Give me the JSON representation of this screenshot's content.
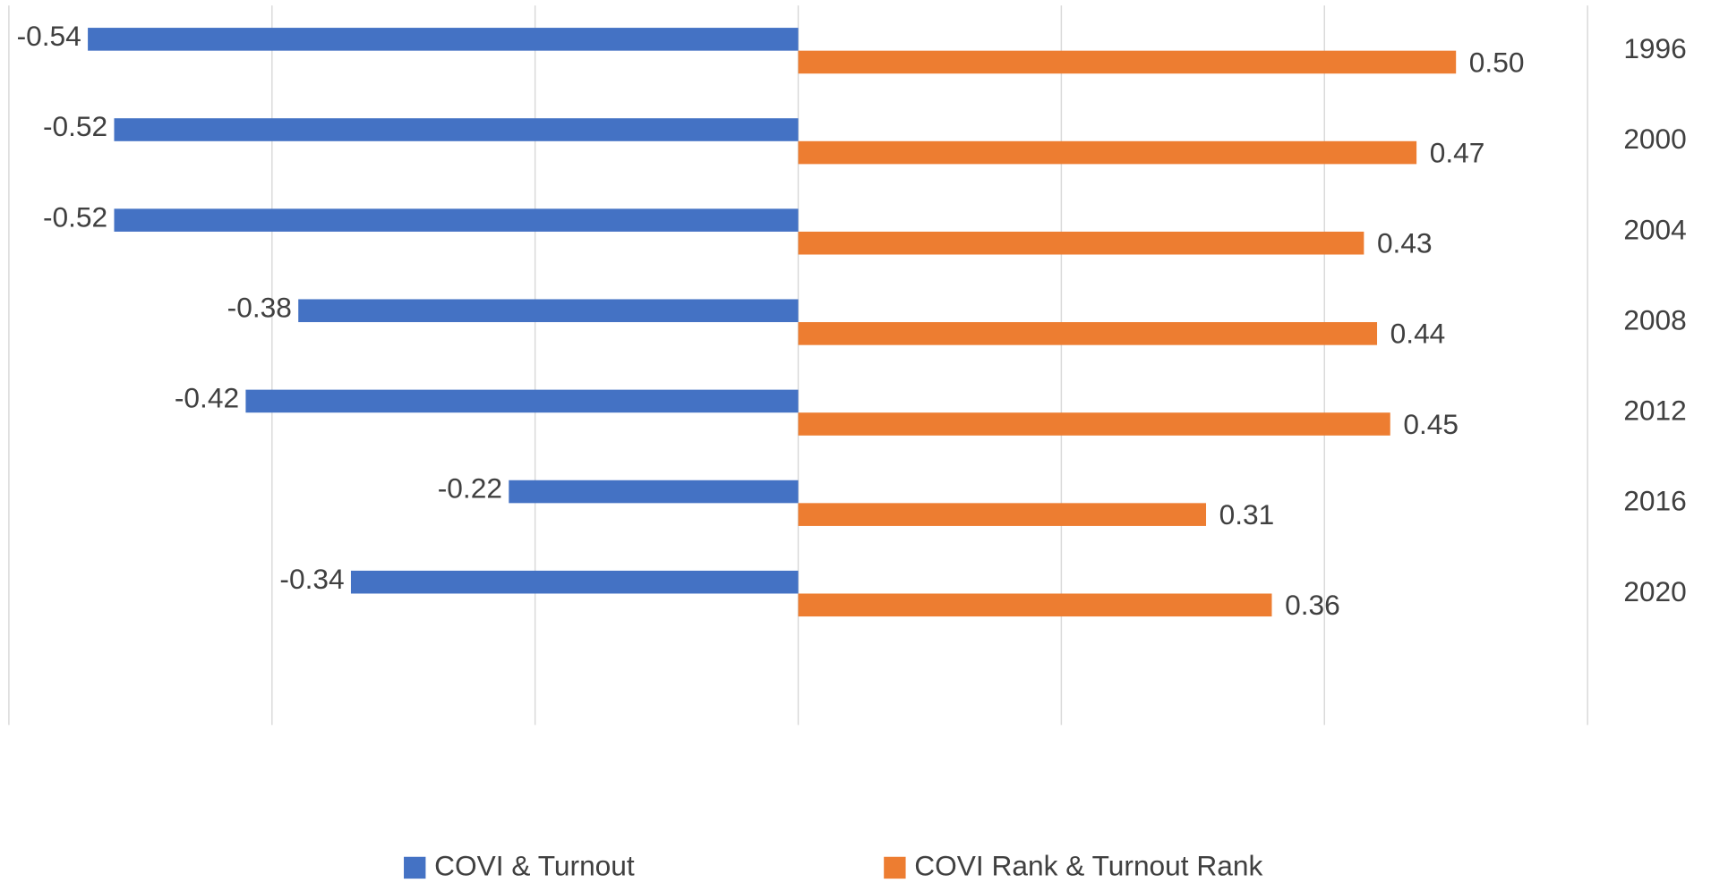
{
  "chart_data": {
    "type": "hbar",
    "categories": [
      "1996",
      "2000",
      "2004",
      "2008",
      "2012",
      "2016",
      "2020"
    ],
    "series": [
      {
        "name": "COVI & Turnout",
        "color": "#4472c4",
        "values": [
          -0.54,
          -0.52,
          -0.52,
          -0.38,
          -0.42,
          -0.22,
          -0.34
        ],
        "value_labels": [
          "-0.54",
          "-0.52",
          "-0.52",
          "-0.38",
          "-0.42",
          "-0.22",
          "-0.34"
        ]
      },
      {
        "name": "COVI Rank & Turnout Rank",
        "color": "#ed7d31",
        "values": [
          0.5,
          0.47,
          0.43,
          0.44,
          0.45,
          0.31,
          0.36
        ],
        "value_labels": [
          "0.50",
          "0.47",
          "0.43",
          "0.44",
          "0.45",
          "0.31",
          "0.36"
        ]
      }
    ],
    "xlim": [
      -0.6,
      0.6
    ],
    "xticks": [
      -0.6,
      -0.4,
      -0.2,
      0,
      0.2,
      0.4,
      0.6
    ],
    "grid": true,
    "legend": "bottom"
  }
}
